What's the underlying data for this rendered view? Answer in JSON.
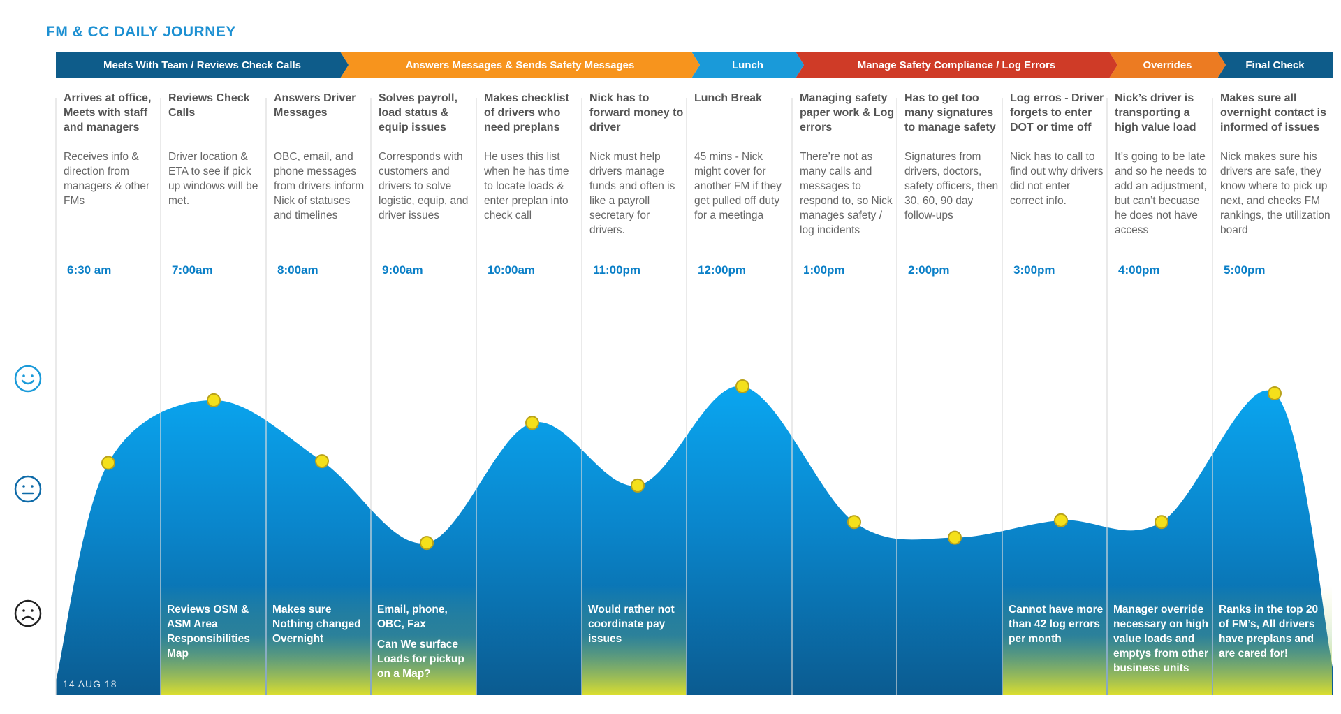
{
  "header": {
    "title": "FM & CC DAILY JOURNEY"
  },
  "phases": [
    {
      "label": "Meets With Team / Reviews Check Calls",
      "color": "#0e5c8a"
    },
    {
      "label": "Answers Messages & Sends Safety Messages",
      "color": "#f7941d"
    },
    {
      "label": "Lunch",
      "color": "#1a9ad9"
    },
    {
      "label": "Manage Safety Compliance / Log Errors",
      "color": "#cf3b27"
    },
    {
      "label": "Overrides",
      "color": "#ec7b22"
    },
    {
      "label": "Final Check",
      "color": "#0e5c8a"
    }
  ],
  "columns": [
    {
      "heading": "Arrives at office, Meets with staff and managers",
      "desc": "Receives info & direction from managers & other FMs",
      "time": "6:30 am"
    },
    {
      "heading": "Reviews Check Calls",
      "desc": "Driver location & ETA to see if pick up windows will be met.",
      "time": "7:00am"
    },
    {
      "heading": "Answers Driver Messages",
      "desc": "OBC, email, and phone messages from drivers inform Nick of statuses and timelines",
      "time": "8:00am"
    },
    {
      "heading": "Solves payroll, load status & equip issues",
      "desc": "Corresponds with customers and drivers to solve logistic, equip, and driver issues",
      "time": "9:00am"
    },
    {
      "heading": "Makes checklist of drivers who need preplans",
      "desc": "He uses this list when he has time to locate loads & enter preplan into check call",
      "time": "10:00am"
    },
    {
      "heading": "Nick has to forward money to driver",
      "desc": "Nick must help drivers manage funds and often is like a payroll secretary for drivers.",
      "time": "11:00pm"
    },
    {
      "heading": "Lunch Break",
      "desc": "45 mins - Nick might cover for another FM if they get pulled off duty for a meetinga",
      "time": "12:00pm"
    },
    {
      "heading": "Managing safety paper work & Log errors",
      "desc": "There’re not as many calls and messages to respond to, so Nick manages safety / log incidents",
      "time": "1:00pm"
    },
    {
      "heading": "Has to get too many signatures to manage safety",
      "desc": "Signatures from drivers, doctors, safety officers, then 30, 60, 90 day follow-ups",
      "time": "2:00pm"
    },
    {
      "heading": "Log erros - Driver forgets to enter DOT or time off",
      "desc": "Nick has to call to find out why drivers did not enter correct info.",
      "time": "3:00pm"
    },
    {
      "heading": "Nick’s driver is transporting a high value load",
      "desc": "It’s going to be late and so he needs to add an adjustment, but can’t becuase he does not have access",
      "time": "4:00pm"
    },
    {
      "heading": "Makes sure all overnight contact is informed of issues",
      "desc": "Nick makes sure his drivers are safe, they know where to pick up next, and checks FM rankings, the utilization board",
      "time": "5:00pm"
    }
  ],
  "emotion_levels": [
    0.56,
    0.92,
    0.57,
    0.1,
    0.79,
    0.43,
    1.0,
    0.22,
    0.13,
    0.23,
    0.22,
    0.96
  ],
  "notes": [
    {
      "column": 1,
      "lines": [
        "Reviews OSM & ASM Area Responsibilities Map"
      ]
    },
    {
      "column": 2,
      "lines": [
        "Makes sure Nothing changed Overnight"
      ]
    },
    {
      "column": 3,
      "lines": [
        "Email, phone, OBC, Fax",
        "Can We surface Loads for pickup on a Map?"
      ]
    },
    {
      "column": 5,
      "lines": [
        "Would rather not coordinate pay issues"
      ]
    },
    {
      "column": 9,
      "lines": [
        "Cannot have more than 42 log errors per month"
      ]
    },
    {
      "column": 10,
      "lines": [
        "Manager override necessary on high value loads and emptys from other business units"
      ]
    },
    {
      "column": 11,
      "lines": [
        "Ranks in the top 20 of FM’s, All drivers have preplans and are cared for!"
      ]
    }
  ],
  "faces": [
    {
      "icon": "happy-face-icon"
    },
    {
      "icon": "neutral-face-icon"
    },
    {
      "icon": "sad-face-icon"
    }
  ],
  "footer": {
    "date": "14 AUG 18"
  },
  "colors": {
    "accent": "#1a9ad9",
    "curve_top": "#0aa6f0",
    "curve_bottom": "#0d4f86",
    "dot": "#f4e01b",
    "note_highlight": "#d9e33a"
  }
}
